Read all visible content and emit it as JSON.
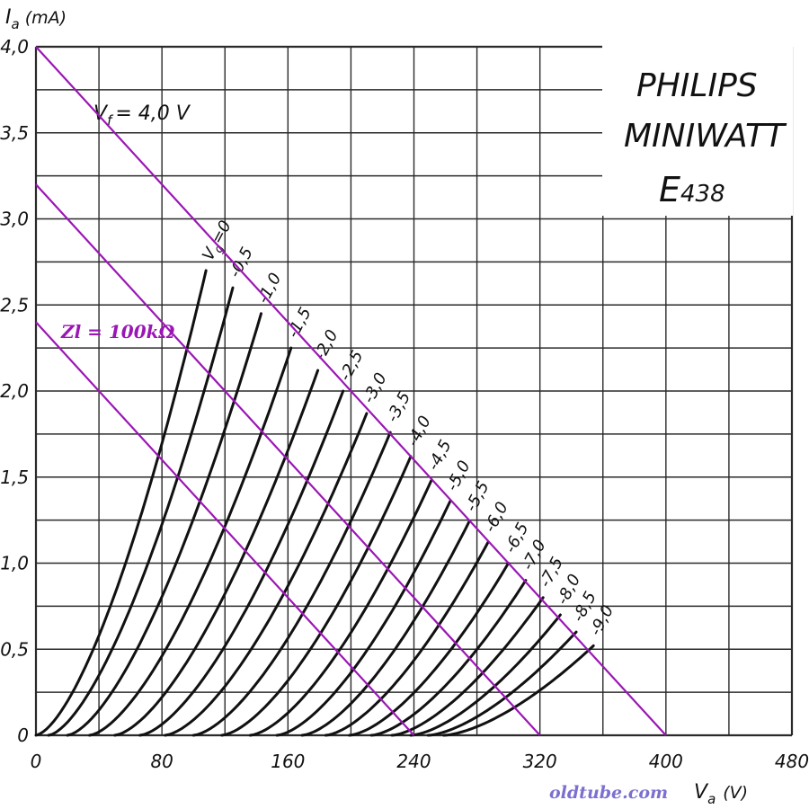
{
  "chart_data": {
    "type": "line",
    "title": "",
    "xlabel": "V",
    "xlabel_sub": "a",
    "xunit": "(V)",
    "ylabel": "I",
    "ylabel_sub": "a",
    "yunit": "(mA)",
    "xlim": [
      0,
      480
    ],
    "ylim": [
      0,
      4.0
    ],
    "grid": true,
    "x_grid_step": 40,
    "y_grid_step": 0.25,
    "xticks": [
      0,
      80,
      160,
      240,
      320,
      400,
      480
    ],
    "xtick_labels": [
      "0",
      "80",
      "160",
      "240",
      "320",
      "400",
      "480"
    ],
    "yticks": [
      0,
      0.5,
      1.0,
      1.5,
      2.0,
      2.5,
      3.0,
      3.5,
      4.0
    ],
    "ytick_labels": [
      "0",
      "0,5",
      "1,0",
      "1,5",
      "2,0",
      "2,5",
      "3,0",
      "3,5",
      "4,0"
    ],
    "colors": {
      "curve": "#111111",
      "load_line": "#9b16b5",
      "grid": "#2a2a2a",
      "watermark": "#7b6fd0"
    },
    "brand_box": {
      "lines": [
        "PHILIPS",
        "MINIWATT"
      ],
      "model_prefix": "E",
      "model_number": "438"
    },
    "filament_note": {
      "prefix": "V",
      "sub": "f",
      "suffix": "= 4,0 V"
    },
    "curves": [
      {
        "label": "V",
        "label_sub": "g",
        "label_suffix": "=0",
        "x0": 0,
        "x_end": 108,
        "y_end": 2.7
      },
      {
        "label": "-0,5",
        "x0": 8,
        "x_end": 125,
        "y_end": 2.6
      },
      {
        "label": "-1,0",
        "x0": 20,
        "x_end": 143,
        "y_end": 2.45
      },
      {
        "label": "-1,5",
        "x0": 34,
        "x_end": 162,
        "y_end": 2.25
      },
      {
        "label": "-2,0",
        "x0": 50,
        "x_end": 179,
        "y_end": 2.12
      },
      {
        "label": "-2,5",
        "x0": 66,
        "x_end": 195,
        "y_end": 2.0
      },
      {
        "label": "-3,0",
        "x0": 82,
        "x_end": 210,
        "y_end": 1.87
      },
      {
        "label": "-3,5",
        "x0": 100,
        "x_end": 225,
        "y_end": 1.76
      },
      {
        "label": "-4,0",
        "x0": 118,
        "x_end": 238,
        "y_end": 1.62
      },
      {
        "label": "-4,5",
        "x0": 136,
        "x_end": 251,
        "y_end": 1.48
      },
      {
        "label": "-5,0",
        "x0": 153,
        "x_end": 263,
        "y_end": 1.36
      },
      {
        "label": "-5,5",
        "x0": 169,
        "x_end": 275,
        "y_end": 1.24
      },
      {
        "label": "-6,0",
        "x0": 184,
        "x_end": 287,
        "y_end": 1.12
      },
      {
        "label": "-6,5",
        "x0": 199,
        "x_end": 300,
        "y_end": 1.0
      },
      {
        "label": "-7,0",
        "x0": 213,
        "x_end": 311,
        "y_end": 0.9
      },
      {
        "label": "-7,5",
        "x0": 226,
        "x_end": 322,
        "y_end": 0.8
      },
      {
        "label": "-8,0",
        "x0": 238,
        "x_end": 333,
        "y_end": 0.7
      },
      {
        "label": "-8,5",
        "x0": 249,
        "x_end": 343,
        "y_end": 0.6
      },
      {
        "label": "-9,0",
        "x0": 259,
        "x_end": 354,
        "y_end": 0.52
      }
    ],
    "load_lines": [
      {
        "x1": 0,
        "y1": 4.0,
        "x2": 400,
        "y2": 0
      },
      {
        "x1": 0,
        "y1": 3.2,
        "x2": 320,
        "y2": 0
      },
      {
        "x1": 0,
        "y1": 2.4,
        "x2": 240,
        "y2": 0
      }
    ],
    "annotations": {
      "load_label": "Zl = 100kΩ"
    }
  },
  "watermark": "oldtube.com"
}
